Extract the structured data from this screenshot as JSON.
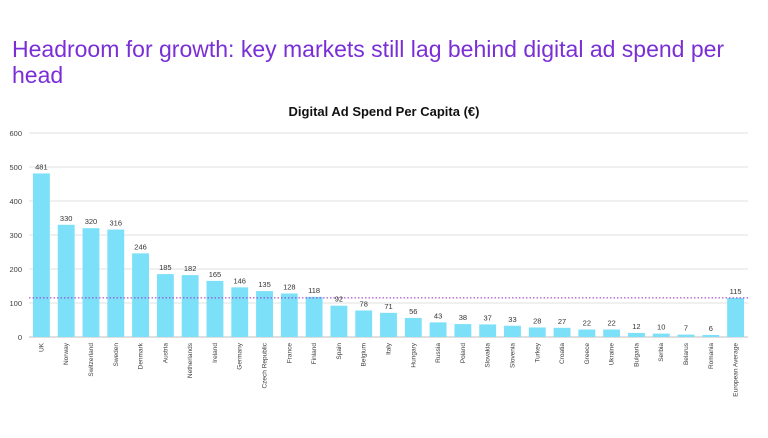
{
  "slide": {
    "headline": "Headroom for growth: key markets still lag behind digital ad spend per head"
  },
  "colors": {
    "headline": "#7a2fd6",
    "bar": "#7be0f8",
    "average_line": "#9b30c8",
    "grid": "#d9d9d9"
  },
  "chart_data": {
    "type": "bar",
    "title": "Digital Ad Spend Per Capita (€)",
    "xlabel": "",
    "ylabel": "",
    "ylim": [
      0,
      600
    ],
    "yticks": [
      0,
      100,
      200,
      300,
      400,
      500,
      600
    ],
    "grid": true,
    "reference_line": {
      "value": 115,
      "style": "dotted"
    },
    "categories": [
      "UK",
      "Norway",
      "Switzerland",
      "Sweden",
      "Denmark",
      "Austria",
      "Netherlands",
      "Ireland",
      "Germany",
      "Czech Republic",
      "France",
      "Finland",
      "Spain",
      "Belgium",
      "Italy",
      "Hungary",
      "Russia",
      "Poland",
      "Slovakia",
      "Slovenia",
      "Turkey",
      "Croatia",
      "Greece",
      "Ukraine",
      "Bulgaria",
      "Serbia",
      "Belarus",
      "Romania",
      "European Average"
    ],
    "values": [
      481,
      330,
      320,
      316,
      246,
      185,
      182,
      165,
      146,
      135,
      128,
      118,
      92,
      78,
      71,
      56,
      43,
      38,
      37,
      33,
      28,
      27,
      22,
      22,
      12,
      10,
      7,
      6,
      115
    ]
  }
}
